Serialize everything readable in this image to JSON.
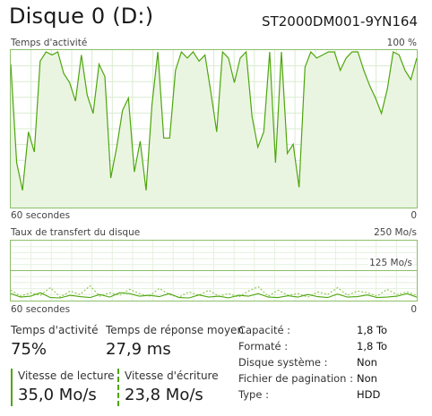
{
  "header": {
    "title": "Disque 0 (D:)",
    "model": "ST2000DM001-9YN164"
  },
  "activity_chart": {
    "label": "Temps d'activité",
    "max_label": "100 %",
    "time_label": "60 secondes",
    "min_label": "0",
    "line_color": "#4da60c",
    "fill_color": "#eaf5e1",
    "grid_color": "#d9ecd0",
    "values": [
      92,
      28,
      10,
      48,
      35,
      94,
      100,
      98,
      100,
      86,
      80,
      68,
      98,
      72,
      60,
      92,
      84,
      18,
      38,
      62,
      70,
      22,
      42,
      10,
      66,
      100,
      44,
      44,
      88,
      100,
      96,
      100,
      94,
      98,
      74,
      48,
      100,
      96,
      80,
      96,
      100,
      58,
      38,
      48,
      100,
      28,
      100,
      34,
      40,
      12,
      90,
      100,
      96,
      98,
      100,
      100,
      88,
      96,
      100,
      100,
      88,
      78,
      70,
      60,
      76,
      100,
      98,
      88,
      82,
      96
    ]
  },
  "transfer_chart": {
    "label": "Taux de transfert du disque",
    "max_label": "250 Mo/s",
    "mid_label": "125 Mo/s",
    "time_label": "60 secondes",
    "min_label": "0",
    "read_color": "#4da60c",
    "write_color": "#8bc34a",
    "read_values": [
      12,
      4,
      6,
      14,
      3,
      2,
      8,
      5,
      3,
      10,
      4,
      14,
      12,
      6,
      8,
      5,
      12,
      3,
      2,
      9,
      4,
      6,
      2,
      8,
      6,
      12,
      4,
      3,
      7,
      4,
      10,
      5,
      3,
      11,
      4,
      5,
      9,
      3,
      4,
      6,
      12,
      4
    ],
    "write_values": [
      20,
      6,
      14,
      8,
      26,
      4,
      18,
      10,
      30,
      6,
      14,
      8,
      22,
      12,
      6,
      24,
      10,
      4,
      16,
      8,
      20,
      6,
      12,
      4,
      18,
      28,
      6,
      20,
      8,
      12,
      4,
      16,
      10,
      26,
      8,
      18,
      14,
      6,
      22,
      10,
      16,
      8
    ]
  },
  "stats": {
    "activity_label": "Temps d'activité",
    "activity_value": "75%",
    "response_label": "Temps de réponse moyen",
    "response_value": "27,9 ms",
    "read_label": "Vitesse de lecture",
    "read_value": "35,0 Mo/s",
    "write_label": "Vitesse d'écriture",
    "write_value": "23,8 Mo/s"
  },
  "properties": [
    {
      "label": "Capacité :",
      "value": "1,8 To"
    },
    {
      "label": "Formaté :",
      "value": "1,8 To"
    },
    {
      "label": "Disque système :",
      "value": "Non"
    },
    {
      "label": "Fichier de pagination :",
      "value": "Non"
    },
    {
      "label": "Type :",
      "value": "HDD"
    }
  ]
}
